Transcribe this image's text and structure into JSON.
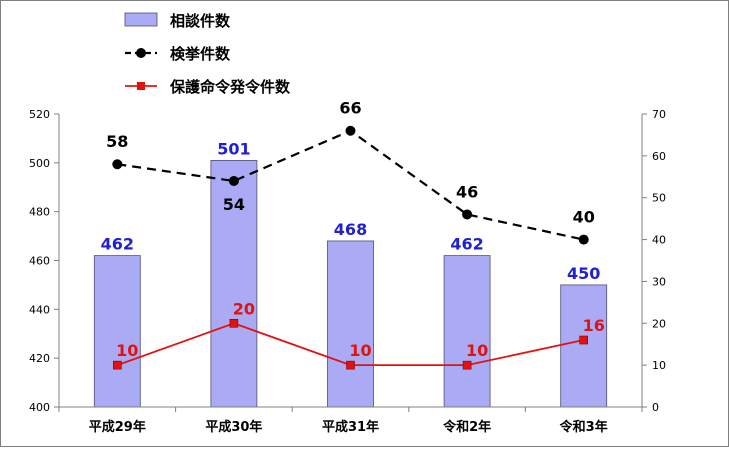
{
  "chart_data": {
    "type": "bar+line",
    "categories": [
      "平成29年",
      "平成30年",
      "平成31年",
      "令和2年",
      "令和3年"
    ],
    "series": [
      {
        "name": "相談件数",
        "type": "bar",
        "axis": "left",
        "values": [
          462,
          501,
          468,
          462,
          450
        ],
        "color": "#aaaaf5",
        "label_color": "#1f1fd6"
      },
      {
        "name": "検挙件数",
        "type": "line",
        "axis": "right",
        "style": "dashed",
        "marker": "circle",
        "values": [
          58,
          54,
          66,
          46,
          40
        ],
        "color": "#000000",
        "label_color": "#000000"
      },
      {
        "name": "保護命令発令件数",
        "type": "line",
        "axis": "right",
        "style": "solid",
        "marker": "square",
        "values": [
          10,
          20,
          10,
          10,
          16
        ],
        "color": "#e0140f",
        "label_color": "#e0140f"
      }
    ],
    "left_axis": {
      "min": 400,
      "max": 520,
      "step": 20,
      "ticks": [
        "400",
        "420",
        "440",
        "460",
        "480",
        "500",
        "520"
      ]
    },
    "right_axis": {
      "min": 0,
      "max": 70,
      "step": 10,
      "ticks": [
        "0",
        "10",
        "20",
        "30",
        "40",
        "50",
        "60",
        "70"
      ]
    },
    "legend_position": "top-left",
    "grid": false
  }
}
